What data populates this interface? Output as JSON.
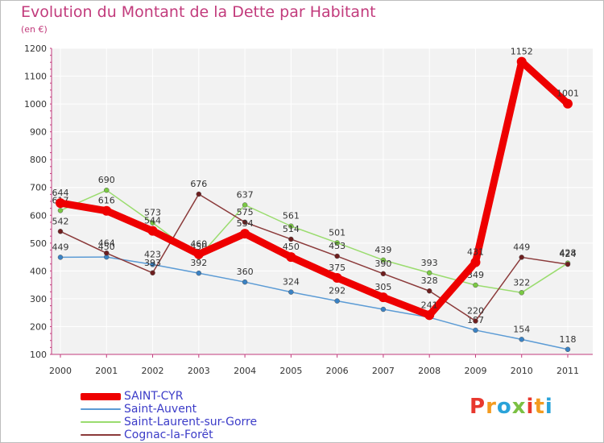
{
  "title": "Evolution du Montant de la Dette par Habitant",
  "subtitle": "(en €)",
  "logo_text": "Proxiti",
  "logo_colors": [
    "#e8382e",
    "#f39b1f",
    "#2aa3d9",
    "#7bc043",
    "#e8382e",
    "#f39b1f",
    "#2aa3d9"
  ],
  "chart_data": {
    "type": "line",
    "x": [
      "2000",
      "2001",
      "2002",
      "2003",
      "2004",
      "2005",
      "2006",
      "2007",
      "2008",
      "2009",
      "2010",
      "2011"
    ],
    "ylim": [
      100,
      1200
    ],
    "yticks": [
      "100",
      "200",
      "300",
      "400",
      "500",
      "600",
      "700",
      "800",
      "900",
      "1000",
      "1100",
      "1200"
    ],
    "grid": true,
    "legend_position": "bottom-left",
    "series": [
      {
        "name": "Saint-Auvent",
        "color": "#5b9bd5",
        "marker": "#3a82c4",
        "values": [
          449,
          450,
          423,
          392,
          360,
          324,
          292,
          262,
          233,
          187,
          154,
          118
        ],
        "labels": [
          "449",
          "450",
          "423",
          "392",
          "360",
          "324",
          "292",
          "",
          "",
          "187",
          "154",
          "118"
        ]
      },
      {
        "name": "Saint-Laurent-sur-Gorre",
        "color": "#9adc6e",
        "marker": "#7ac943",
        "values": [
          617,
          690,
          573,
          450,
          637,
          561,
          501,
          439,
          393,
          349,
          322,
          428
        ],
        "labels": [
          "617",
          "690",
          "573",
          "450",
          "637",
          "561",
          "501",
          "439",
          "393",
          "349",
          "322",
          "428"
        ]
      },
      {
        "name": "Cognac-la-Forêt",
        "color": "#8b3a3a",
        "marker": "#6e1f1f",
        "values": [
          542,
          464,
          393,
          676,
          575,
          514,
          453,
          390,
          328,
          220,
          449,
          424
        ],
        "labels": [
          "542",
          "464",
          "393",
          "676",
          "575",
          "514",
          "453",
          "390",
          "328",
          "220",
          "449",
          "424"
        ]
      },
      {
        "name": "SAINT-CYR",
        "color": "#ee0000",
        "marker": "#ee0000",
        "values": [
          644,
          616,
          544,
          460,
          534,
          450,
          375,
          305,
          241,
          431,
          1152,
          1001
        ],
        "labels": [
          "644",
          "616",
          "544",
          "460",
          "534",
          "450",
          "375",
          "305",
          "241",
          "431",
          "1152",
          "1001"
        ]
      }
    ],
    "legend": [
      "SAINT-CYR",
      "Saint-Auvent",
      "Saint-Laurent-sur-Gorre",
      "Cognac-la-Forêt"
    ]
  }
}
